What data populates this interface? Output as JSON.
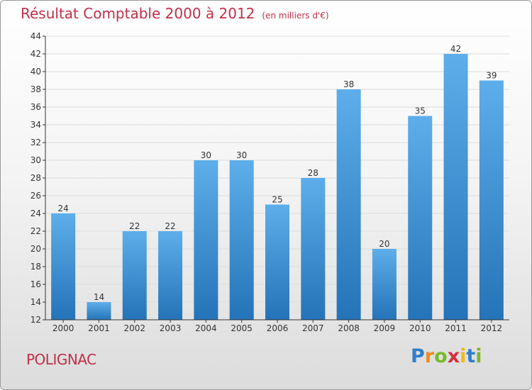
{
  "header": {
    "title": "Résultat Comptable 2000 à 2012",
    "subtitle": "(en milliers d'€)"
  },
  "footer": {
    "commune": "POLIGNAC",
    "brand": "Proxiti"
  },
  "colors": {
    "title": "#c0304a",
    "bar_top": "#5daeea",
    "bar_bottom": "#2573b8",
    "axis": "#333333",
    "grid": "#dddddd"
  },
  "chart_data": {
    "type": "bar",
    "categories": [
      "2000",
      "2001",
      "2002",
      "2003",
      "2004",
      "2005",
      "2006",
      "2007",
      "2008",
      "2009",
      "2010",
      "2011",
      "2012"
    ],
    "values": [
      24,
      14,
      22,
      22,
      30,
      30,
      25,
      28,
      38,
      20,
      35,
      42,
      39
    ],
    "title": "Résultat Comptable 2000 à 2012",
    "subtitle": "(en milliers d'€)",
    "xlabel": "",
    "ylabel": "",
    "ylim": [
      12,
      44
    ],
    "yticks": [
      12,
      14,
      16,
      18,
      20,
      22,
      24,
      26,
      28,
      30,
      32,
      34,
      36,
      38,
      40,
      42,
      44
    ],
    "grid": true,
    "data_labels": true
  }
}
